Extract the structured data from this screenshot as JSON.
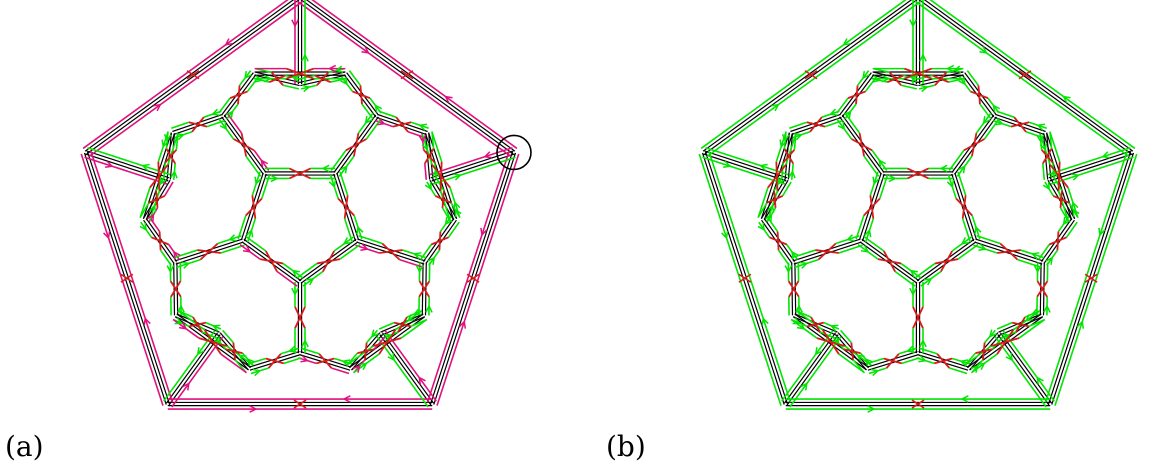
{
  "panels": [
    {
      "label": "(a)",
      "outer_color": "#e0117f",
      "has_marker": true
    },
    {
      "label": "(b)",
      "outer_color": "#00e600",
      "has_marker": false
    }
  ],
  "colors": {
    "edge": "#000000",
    "primary_loop": "#00e600",
    "secondary_loop": "#e0117f",
    "crossing": "#d81b1b",
    "marker": "#000000"
  }
}
